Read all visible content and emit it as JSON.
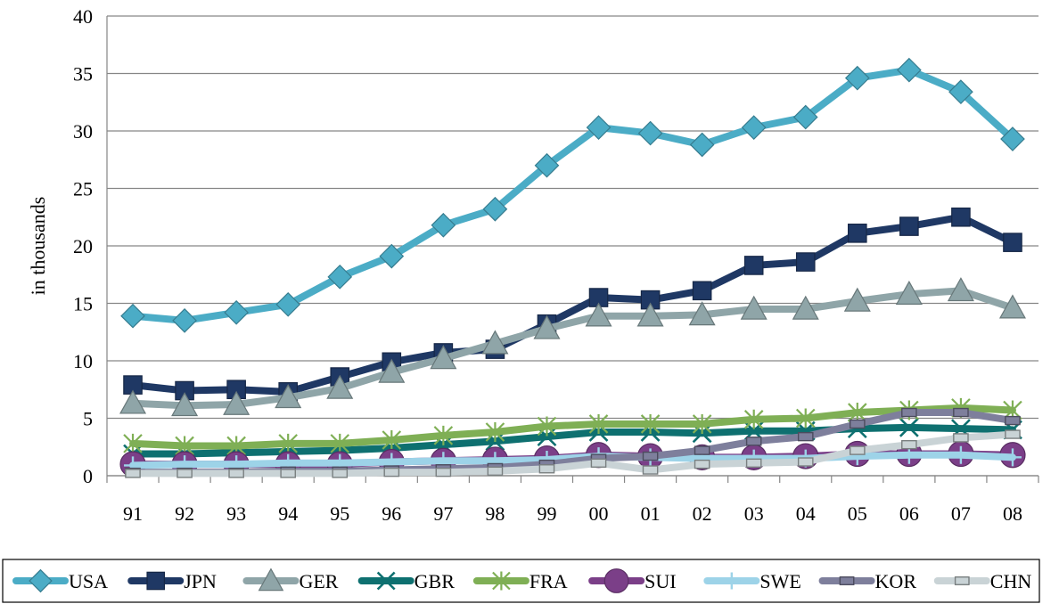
{
  "chart_data": {
    "type": "line",
    "title": "",
    "xlabel": "",
    "ylabel": "in thousands",
    "ylim": [
      0,
      40
    ],
    "yticks": [
      0,
      5,
      10,
      15,
      20,
      25,
      30,
      35,
      40
    ],
    "grid": true,
    "legend_position": "bottom",
    "categories": [
      "91",
      "92",
      "93",
      "94",
      "95",
      "96",
      "97",
      "98",
      "99",
      "00",
      "01",
      "02",
      "03",
      "04",
      "05",
      "06",
      "07",
      "08"
    ],
    "series": [
      {
        "name": "USA",
        "color": "#4BACC6",
        "marker": "diamond",
        "values": [
          13.9,
          13.5,
          14.2,
          14.9,
          17.3,
          19.1,
          21.8,
          23.2,
          27.0,
          30.3,
          29.8,
          28.8,
          30.3,
          31.2,
          34.6,
          35.3,
          33.4,
          29.3
        ]
      },
      {
        "name": "JPN",
        "color": "#1F3864",
        "marker": "square",
        "values": [
          7.9,
          7.4,
          7.5,
          7.3,
          8.6,
          9.9,
          10.7,
          11.0,
          13.2,
          15.5,
          15.3,
          16.1,
          18.3,
          18.6,
          21.1,
          21.7,
          22.5,
          20.3
        ]
      },
      {
        "name": "GER",
        "color": "#8FA5A8",
        "marker": "triangle",
        "values": [
          6.3,
          6.1,
          6.2,
          6.8,
          7.6,
          9.0,
          10.2,
          11.5,
          12.8,
          13.9,
          13.9,
          14.0,
          14.5,
          14.5,
          15.2,
          15.8,
          16.1,
          14.6
        ]
      },
      {
        "name": "GBR",
        "color": "#0E7070",
        "marker": "x",
        "values": [
          1.9,
          1.9,
          2.0,
          2.1,
          2.2,
          2.4,
          2.7,
          3.0,
          3.4,
          3.8,
          3.8,
          3.7,
          3.9,
          3.9,
          4.1,
          4.2,
          4.1,
          4.0
        ]
      },
      {
        "name": "FRA",
        "color": "#7FAF55",
        "marker": "star",
        "values": [
          2.8,
          2.6,
          2.6,
          2.8,
          2.8,
          3.1,
          3.5,
          3.8,
          4.3,
          4.5,
          4.5,
          4.5,
          4.9,
          5.0,
          5.5,
          5.7,
          5.9,
          5.7
        ]
      },
      {
        "name": "SUI",
        "color": "#7B3F88",
        "marker": "circle",
        "values": [
          1.0,
          1.0,
          1.0,
          1.0,
          1.0,
          1.2,
          1.3,
          1.4,
          1.5,
          1.8,
          1.7,
          1.6,
          1.6,
          1.7,
          1.9,
          1.9,
          1.9,
          1.8
        ]
      },
      {
        "name": "SWE",
        "color": "#9DD3E8",
        "marker": "plus",
        "values": [
          0.9,
          1.0,
          1.0,
          1.1,
          1.1,
          1.2,
          1.3,
          1.3,
          1.4,
          1.7,
          1.6,
          1.5,
          1.5,
          1.5,
          1.7,
          1.8,
          1.8,
          1.6
        ]
      },
      {
        "name": "KOR",
        "color": "#7E7F9C",
        "marker": "rect",
        "values": [
          0.3,
          0.3,
          0.3,
          0.4,
          0.4,
          0.5,
          0.6,
          0.7,
          1.0,
          1.5,
          1.7,
          2.2,
          3.0,
          3.4,
          4.5,
          5.5,
          5.5,
          4.8
        ]
      },
      {
        "name": "CHN",
        "color": "#C9D3D6",
        "marker": "rect",
        "values": [
          0.2,
          0.2,
          0.2,
          0.2,
          0.2,
          0.3,
          0.3,
          0.4,
          0.6,
          1.1,
          0.5,
          1.0,
          1.1,
          1.2,
          2.2,
          2.7,
          3.3,
          3.6
        ]
      }
    ]
  }
}
